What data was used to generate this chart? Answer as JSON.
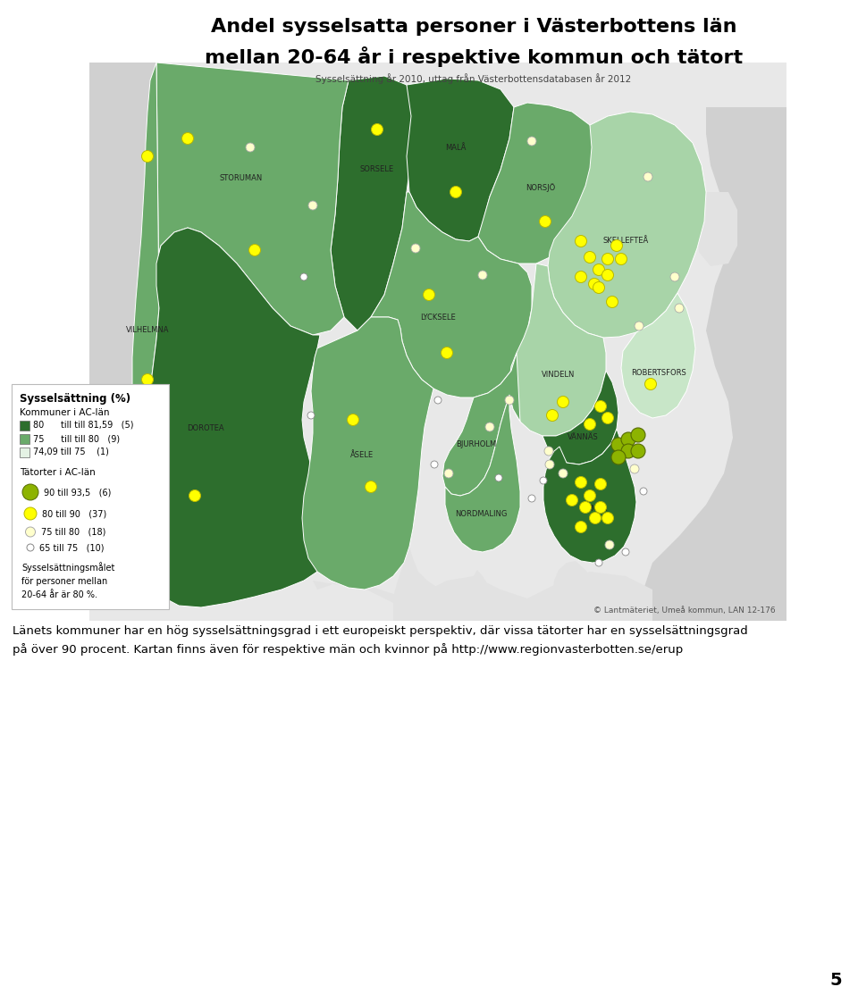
{
  "title_line1": "Andel sysselsatta personer i Västerbottens län",
  "title_line2": "mellan 20-64 år i respektive kommun och tätort",
  "subtitle": "Sysselsättning år 2010, uttag från Västerbottensdatabasen år 2012",
  "legend_title": "Sysselsättning (%)",
  "legend_subtitle1": "Kommuner i AC-län",
  "legend_subtitle2": "Tätorter i AC-län",
  "legend_note": "Sysselsättningsmålet\nför personer mellan\n20-64 år är 80 %.",
  "bottom_text_line1": "Länets kommuner har en hög sysselsättningsgrad i ett europeiskt perspektiv, där vissa tätorter har en sysselsättningsgrad",
  "bottom_text_line2": "på över 90 procent. Kartan finns även för respektive män och kvinnor på http://www.regionvasterbotten.se/erup",
  "copyright_text": "© Lantmäteriet, Umeå kommun, LAN 12-176",
  "page_number": "5",
  "background_color": "#ffffff",
  "colors": {
    "dark_green": "#2d6e2d",
    "medium_dark_green": "#3a7d3a",
    "medium_green": "#6aaa6a",
    "light_green": "#a8d4a8",
    "very_light_green": "#c8e6c8",
    "lightest_green": "#e4f2e4",
    "outside_gray": "#d0d0d0",
    "outside_light_gray": "#e2e2e2",
    "map_frame": "#e8e8e8"
  },
  "municipality_colors": {
    "Sorsele": "dark_green",
    "Storuman": "medium_green",
    "Vilhelmina": "medium_green",
    "Dorotea": "dark_green",
    "Malå": "dark_green",
    "Norsjö": "medium_green",
    "Lycksele": "medium_green",
    "Åsele": "medium_green",
    "Skellefteå": "light_green",
    "Vindeln": "light_green",
    "Bjurholm": "medium_green",
    "Vännäs": "dark_green",
    "Robertsfors": "light_green",
    "Umeå": "dark_green",
    "Nordmaling": "medium_green"
  }
}
